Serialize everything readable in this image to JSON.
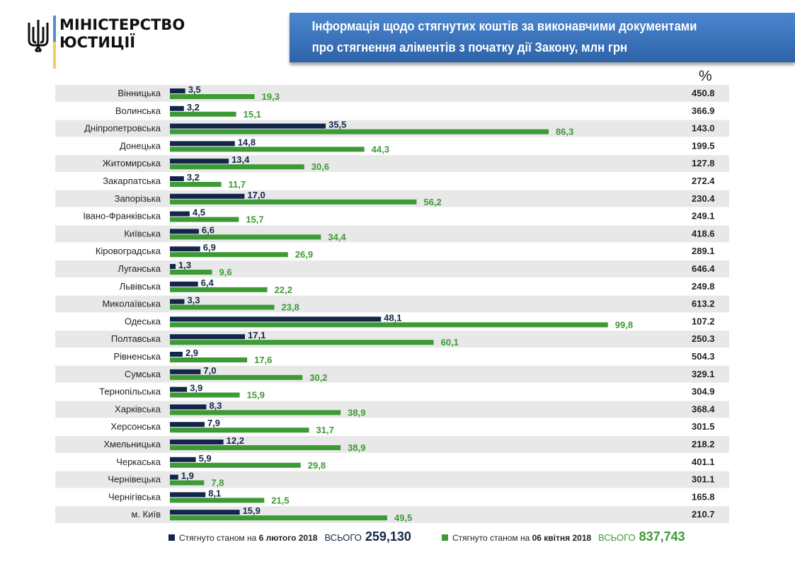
{
  "header": {
    "logo_line1": "МІНІСТЕРСТВО",
    "logo_line2": "ЮСТИЦІЇ",
    "title_line1": "Інформація щодо стягнутих коштів за виконавчими документами",
    "title_line2": "про стягнення аліментів з початку дії Закону, млн грн",
    "percent_header": "%"
  },
  "colors": {
    "series1": "#13264a",
    "series2": "#3d9a35",
    "row_alt": "#e8e8e8",
    "title_bg": "#3b74bd"
  },
  "legend": {
    "series1_text": "Стягнуто станом на",
    "series1_date": "6 лютого 2018",
    "series1_total_label": "ВСЬОГО",
    "series1_total": "259,130",
    "series2_text": "Стягнуто станом на",
    "series2_date": "06 квітня 2018",
    "series2_total_label": "ВСЬОГО",
    "series2_total": "837,743"
  },
  "chart_data": {
    "type": "bar",
    "orientation": "horizontal",
    "title": "Інформація щодо стягнутих коштів за виконавчими документами про стягнення аліментів з початку дії Закону, млн грн",
    "xlabel": "",
    "ylabel": "",
    "xlim": [
      0,
      100
    ],
    "grid": false,
    "legend_position": "bottom",
    "categories": [
      "Вінницька",
      "Волинська",
      "Дніпропетровська",
      "Донецька",
      "Житомирська",
      "Закарпатська",
      "Запорізька",
      "Івано-Франківська",
      "Київська",
      "Кіровоградська",
      "Луганська",
      "Львівська",
      "Миколаївська",
      "Одеська",
      "Полтавська",
      "Рівненська",
      "Сумська",
      "Тернопільська",
      "Харківська",
      "Херсонська",
      "Хмельницька",
      "Черкаська",
      "Чернівецька",
      "Чернігівська",
      "м. Київ"
    ],
    "series": [
      {
        "name": "Стягнуто станом на 6 лютого 2018",
        "values": [
          3.5,
          3.2,
          35.5,
          14.8,
          13.4,
          3.2,
          17.0,
          4.5,
          6.6,
          6.9,
          1.3,
          6.4,
          3.3,
          48.1,
          17.1,
          2.9,
          7.0,
          3.9,
          8.3,
          7.9,
          12.2,
          5.9,
          1.9,
          8.1,
          15.9
        ],
        "labels": [
          "3,5",
          "3,2",
          "35,5",
          "14,8",
          "13,4",
          "3,2",
          "17,0",
          "4,5",
          "6,6",
          "6,9",
          "1,3",
          "6,4",
          "3,3",
          "48,1",
          "17,1",
          "2,9",
          "7,0",
          "3,9",
          "8,3",
          "7,9",
          "12,2",
          "5,9",
          "1,9",
          "8,1",
          "15,9"
        ]
      },
      {
        "name": "Стягнуто станом на 06 квітня 2018",
        "values": [
          19.3,
          15.1,
          86.3,
          44.3,
          30.6,
          11.7,
          56.2,
          15.7,
          34.4,
          26.9,
          9.6,
          22.2,
          23.8,
          99.8,
          60.1,
          17.6,
          30.2,
          15.9,
          38.9,
          31.7,
          38.9,
          29.8,
          7.8,
          21.5,
          49.5
        ],
        "labels": [
          "19,3",
          "15,1",
          "86,3",
          "44,3",
          "30,6",
          "11,7",
          "56,2",
          "15,7",
          "34,4",
          "26,9",
          "9,6",
          "22,2",
          "23,8",
          "99,8",
          "60,1",
          "17,6",
          "30,2",
          "15,9",
          "38,9",
          "31,7",
          "38,9",
          "29,8",
          "7,8",
          "21,5",
          "49,5"
        ]
      }
    ],
    "percent": [
      "450.8",
      "366.9",
      "143.0",
      "199.5",
      "127.8",
      "272.4",
      "230.4",
      "249.1",
      "418.6",
      "289.1",
      "646.4",
      "249.8",
      "613.2",
      "107.2",
      "250.3",
      "504.3",
      "329.1",
      "304.9",
      "368.4",
      "301.5",
      "218.2",
      "401.1",
      "301.1",
      "165.8",
      "210.7"
    ]
  }
}
